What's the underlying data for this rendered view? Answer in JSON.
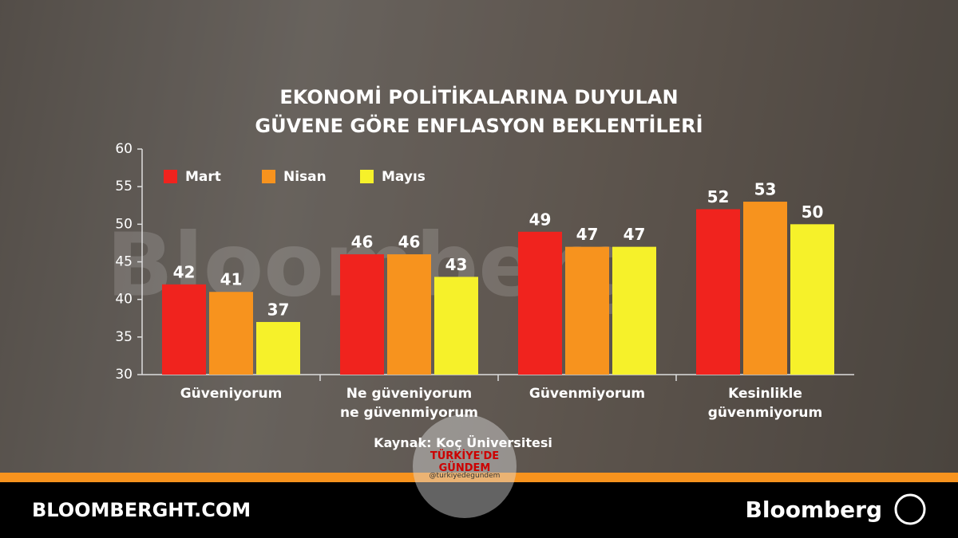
{
  "chart_data": {
    "type": "bar",
    "title": "EKONOMİ POLİTİKALARINA DUYULAN\nGÜVENE GÖRE ENFLASYON BEKLENTİLERİ",
    "categories": [
      "Güveniyorum",
      "Ne güveniyorum\nne güvenmiyorum",
      "Güvenmiyorum",
      "Kesinlikle\ngüvenmiyorum"
    ],
    "series": [
      {
        "name": "Mart",
        "color": "#f0231e",
        "values": [
          42,
          46,
          49,
          52
        ]
      },
      {
        "name": "Nisan",
        "color": "#f7931e",
        "values": [
          41,
          46,
          47,
          53
        ]
      },
      {
        "name": "Mayıs",
        "color": "#f6f12a",
        "values": [
          37,
          43,
          47,
          50
        ]
      }
    ],
    "ylim": [
      30,
      60
    ],
    "yticks": [
      30,
      35,
      40,
      45,
      50,
      55,
      60
    ],
    "source": "Kaynak: Koç Üniversitesi"
  },
  "watermark": "Bloomberg",
  "overlay": {
    "title": "TÜRKİYE'DE GÜNDEM",
    "handle": "@turkiyedegundem"
  },
  "footer": {
    "site": "BLOOMBERGHT.COM",
    "brand": "Bloomberg"
  }
}
